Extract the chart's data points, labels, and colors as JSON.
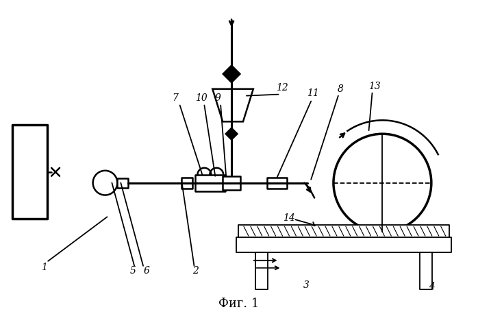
{
  "bg": "#ffffff",
  "fg": "#000000",
  "fig_caption": "Фиг. 1"
}
